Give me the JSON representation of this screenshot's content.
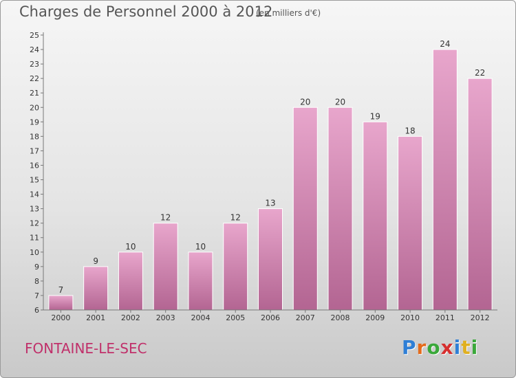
{
  "chart_data": {
    "type": "bar",
    "title": "Charges de Personnel 2000 à 2012",
    "subtitle": "(en milliers d'€)",
    "categories": [
      "2000",
      "2001",
      "2002",
      "2003",
      "2004",
      "2005",
      "2006",
      "2007",
      "2008",
      "2009",
      "2010",
      "2011",
      "2012"
    ],
    "values": [
      7,
      9,
      10,
      12,
      10,
      12,
      13,
      20,
      20,
      19,
      18,
      24,
      22
    ],
    "ylim": [
      6,
      25
    ],
    "yticks": [
      6,
      7,
      8,
      9,
      10,
      11,
      12,
      13,
      14,
      15,
      16,
      17,
      18,
      19,
      20,
      21,
      22,
      23,
      24,
      25
    ],
    "xlabel": "",
    "ylabel": "",
    "grid": false,
    "bar_color": "#d07aa8"
  },
  "footer": {
    "commune": "FONTAINE-LE-SEC",
    "logo_letters": [
      "P",
      "r",
      "o",
      "x",
      "i",
      "t",
      "i"
    ],
    "logo_colors": [
      "#2f7fd6",
      "#e46b1c",
      "#3aa83a",
      "#d62f2f",
      "#2f7fd6",
      "#e0b020",
      "#3aa83a"
    ]
  }
}
